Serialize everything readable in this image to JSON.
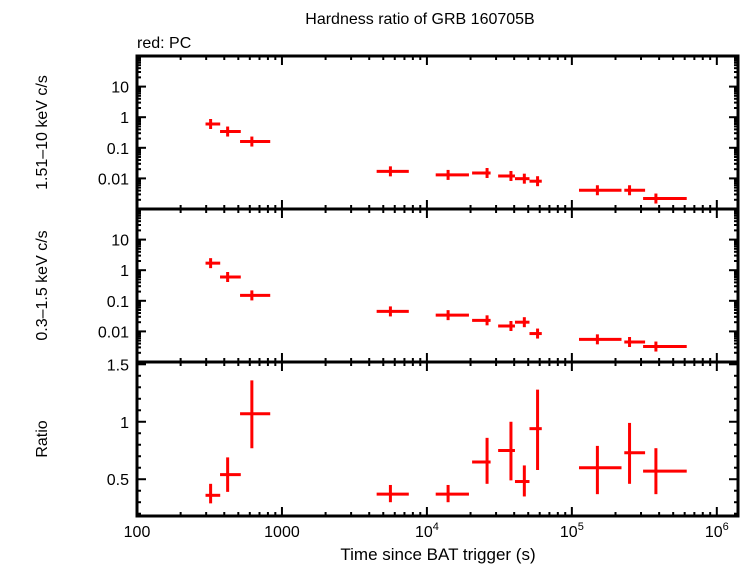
{
  "chart_data": {
    "type": "scatter",
    "title": "Hardness ratio of GRB 160705B",
    "subtitle": "red: PC",
    "xlabel": "Time since BAT trigger (s)",
    "xscale": "log",
    "xlim": [
      100,
      1400000
    ],
    "xticks": [
      {
        "value": 100,
        "label": "100"
      },
      {
        "value": 1000,
        "label": "1000"
      },
      {
        "value": 10000,
        "label": "10",
        "sup": "4"
      },
      {
        "value": 100000,
        "label": "10",
        "sup": "5"
      },
      {
        "value": 1000000,
        "label": "10",
        "sup": "6"
      }
    ],
    "series_color": "#ff0000",
    "panels": [
      {
        "name": "hard-band",
        "ylabel": "1.51–10 keV c/s",
        "yscale": "log",
        "ylim": [
          0.001,
          100
        ],
        "yticks": [
          {
            "value": 10,
            "label": "10"
          },
          {
            "value": 1,
            "label": "1"
          },
          {
            "value": 0.1,
            "label": "0.1"
          },
          {
            "value": 0.01,
            "label": "0.01"
          }
        ],
        "points": [
          {
            "x": 322,
            "xlo": 297,
            "xhi": 375,
            "y": 0.6
          },
          {
            "x": 422,
            "xlo": 374,
            "xhi": 520,
            "y": 0.34
          },
          {
            "x": 620,
            "xlo": 514,
            "xhi": 830,
            "y": 0.16
          },
          {
            "x": 5600,
            "xlo": 4500,
            "xhi": 7500,
            "y": 0.017
          },
          {
            "x": 14000,
            "xlo": 11500,
            "xhi": 19500,
            "y": 0.013
          },
          {
            "x": 26000,
            "xlo": 20500,
            "xhi": 27500,
            "y": 0.015
          },
          {
            "x": 38000,
            "xlo": 31000,
            "xhi": 40500,
            "y": 0.012
          },
          {
            "x": 47000,
            "xlo": 40500,
            "xhi": 51000,
            "y": 0.0098
          },
          {
            "x": 58000,
            "xlo": 51000,
            "xhi": 62000,
            "y": 0.0081
          },
          {
            "x": 150000,
            "xlo": 112000,
            "xhi": 220000,
            "y": 0.0041
          },
          {
            "x": 250000,
            "xlo": 230000,
            "xhi": 320000,
            "y": 0.0041
          },
          {
            "x": 380000,
            "xlo": 310000,
            "xhi": 620000,
            "y": 0.0022
          }
        ]
      },
      {
        "name": "soft-band",
        "ylabel": "0.3–1.5 keV c/s",
        "yscale": "log",
        "ylim": [
          0.001,
          100
        ],
        "yticks": [
          {
            "value": 10,
            "label": "10"
          },
          {
            "value": 1,
            "label": "1"
          },
          {
            "value": 0.1,
            "label": "0.1"
          },
          {
            "value": 0.01,
            "label": "0.01"
          }
        ],
        "points": [
          {
            "x": 322,
            "xlo": 297,
            "xhi": 375,
            "y": 1.7
          },
          {
            "x": 422,
            "xlo": 374,
            "xhi": 520,
            "y": 0.6
          },
          {
            "x": 620,
            "xlo": 514,
            "xhi": 830,
            "y": 0.15
          },
          {
            "x": 5600,
            "xlo": 4500,
            "xhi": 7500,
            "y": 0.045
          },
          {
            "x": 14000,
            "xlo": 11500,
            "xhi": 19500,
            "y": 0.034
          },
          {
            "x": 26000,
            "xlo": 20500,
            "xhi": 27500,
            "y": 0.023
          },
          {
            "x": 38000,
            "xlo": 31000,
            "xhi": 40500,
            "y": 0.015
          },
          {
            "x": 47000,
            "xlo": 40500,
            "xhi": 51000,
            "y": 0.02
          },
          {
            "x": 58000,
            "xlo": 51000,
            "xhi": 62000,
            "y": 0.0085
          },
          {
            "x": 150000,
            "xlo": 112000,
            "xhi": 220000,
            "y": 0.0055
          },
          {
            "x": 250000,
            "xlo": 230000,
            "xhi": 320000,
            "y": 0.0045
          },
          {
            "x": 380000,
            "xlo": 310000,
            "xhi": 620000,
            "y": 0.0032
          }
        ]
      },
      {
        "name": "ratio",
        "ylabel": "Ratio",
        "yscale": "linear",
        "ylim": [
          0.18,
          1.52
        ],
        "yticks": [
          {
            "value": 1.5,
            "label": "1.5"
          },
          {
            "value": 1,
            "label": "1"
          },
          {
            "value": 0.5,
            "label": "0.5"
          }
        ],
        "points": [
          {
            "x": 322,
            "xlo": 297,
            "xhi": 375,
            "y": 0.36,
            "ylo": 0.29,
            "yhi": 0.46
          },
          {
            "x": 422,
            "xlo": 374,
            "xhi": 520,
            "y": 0.54,
            "ylo": 0.39,
            "yhi": 0.69
          },
          {
            "x": 620,
            "xlo": 514,
            "xhi": 830,
            "y": 1.07,
            "ylo": 0.77,
            "yhi": 1.36
          },
          {
            "x": 5600,
            "xlo": 4500,
            "xhi": 7500,
            "y": 0.37,
            "ylo": 0.3,
            "yhi": 0.45
          },
          {
            "x": 14000,
            "xlo": 11500,
            "xhi": 19500,
            "y": 0.37,
            "ylo": 0.3,
            "yhi": 0.45
          },
          {
            "x": 26000,
            "xlo": 20500,
            "xhi": 27500,
            "y": 0.65,
            "ylo": 0.46,
            "yhi": 0.86
          },
          {
            "x": 38000,
            "xlo": 31000,
            "xhi": 40500,
            "y": 0.75,
            "ylo": 0.49,
            "yhi": 1.0
          },
          {
            "x": 47000,
            "xlo": 40500,
            "xhi": 51000,
            "y": 0.48,
            "ylo": 0.35,
            "yhi": 0.62
          },
          {
            "x": 58000,
            "xlo": 51000,
            "xhi": 62000,
            "y": 0.94,
            "ylo": 0.58,
            "yhi": 1.28
          },
          {
            "x": 150000,
            "xlo": 112000,
            "xhi": 220000,
            "y": 0.6,
            "ylo": 0.37,
            "yhi": 0.79
          },
          {
            "x": 250000,
            "xlo": 230000,
            "xhi": 320000,
            "y": 0.73,
            "ylo": 0.46,
            "yhi": 0.99
          },
          {
            "x": 380000,
            "xlo": 310000,
            "xhi": 620000,
            "y": 0.57,
            "ylo": 0.37,
            "yhi": 0.77
          }
        ]
      }
    ],
    "grid": false,
    "legend": "top-left"
  }
}
